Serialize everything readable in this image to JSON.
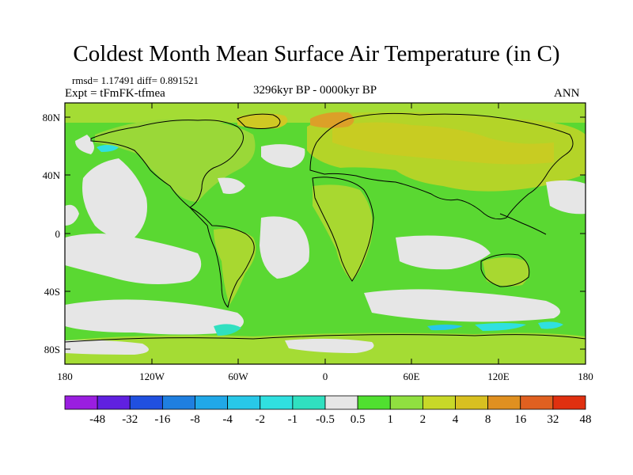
{
  "title": "Coldest Month Mean Surface Air Temperature (in C)",
  "stats": "rmsd= 1.17491 diff= 0.891521",
  "experiment": "Expt = tFmFK-tfmea",
  "period": "3296kyr BP - 0000kyr BP",
  "season": "ANN",
  "axes": {
    "lat_labels": [
      "80N",
      "40N",
      "0",
      "40S",
      "80S"
    ],
    "lon_labels": [
      "180",
      "120W",
      "60W",
      "0",
      "60E",
      "120E",
      "180"
    ]
  },
  "legend": {
    "labels": [
      "-48",
      "-32",
      "-16",
      "-8",
      "-4",
      "-2",
      "-1",
      "-0.5",
      "0.5",
      "1",
      "2",
      "4",
      "8",
      "16",
      "32",
      "48"
    ],
    "colors": [
      "#9a1ee0",
      "#6020e0",
      "#2050e0",
      "#1f7fe0",
      "#20a8e8",
      "#28c8e8",
      "#30e0e0",
      "#30e0c0",
      "#e6e6e6",
      "#50e030",
      "#90e040",
      "#c8d828",
      "#d8c020",
      "#e09020",
      "#e06020",
      "#e03010"
    ]
  }
}
